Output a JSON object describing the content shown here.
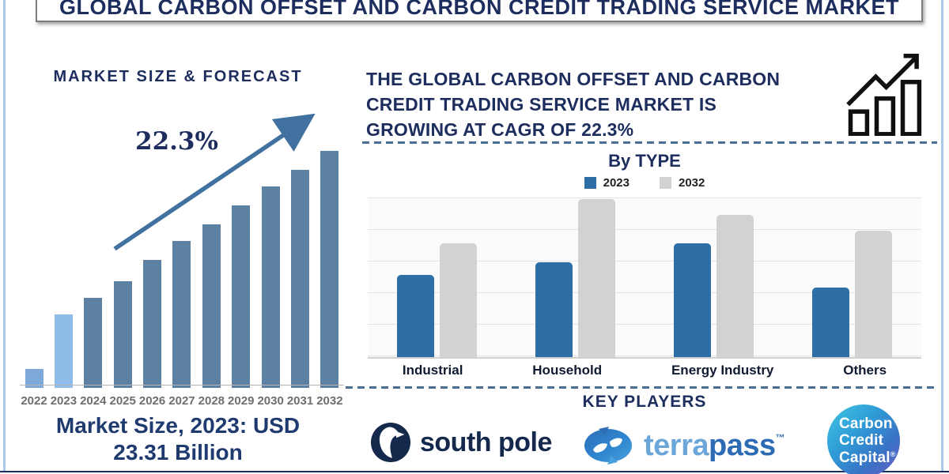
{
  "title": "GLOBAL CARBON OFFSET AND CARBON CREDIT TRADING SERVICE MARKET",
  "left_panel": {
    "heading": "MARKET SIZE & FORECAST",
    "cagr_label": "22.3%",
    "caption_line1": "Market Size, 2023: USD",
    "caption_line2": "23.31 Billion"
  },
  "right_panel": {
    "headline_line1": "THE GLOBAL CARBON OFFSET AND CARBON",
    "headline_line2": "CREDIT TRADING SERVICE MARKET IS",
    "headline_line3": "GROWING AT CAGR OF 22.3%",
    "by_type_title": "By TYPE",
    "key_players_heading": "KEY PLAYERS"
  },
  "key_players": {
    "south_pole_label": "south pole",
    "terrapass_part1": "terra",
    "terrapass_part2": "pass",
    "terrapass_tm": "™",
    "ccc_line1": "Carbon",
    "ccc_line2": "Credit",
    "ccc_line3": "Capital",
    "ccc_reg": "®"
  },
  "colors": {
    "navy": "#1c2d5e",
    "caption_navy": "#1f3a6e",
    "year_label_gray": "#6e6e6e",
    "edge_blue": "#a9c9e9",
    "dashed_line": "#4a6f94",
    "arrow_steel": "#41729f",
    "bar_steel": "#5d81a3",
    "bar_light_2022": "#7fa9d8",
    "bar_light_2023": "#8fbce8",
    "type_2023_blue": "#2d6ea6",
    "type_2032_gray": "#d2d2d2",
    "southpole_navy": "#15294d",
    "terra_light_blue": "#6ba6da",
    "pass_dark_blue": "#2d6cb4"
  },
  "chart_data": [
    {
      "type": "bar",
      "title": "MARKET SIZE & FORECAST",
      "categories": [
        "2022",
        "2023",
        "2024",
        "2025",
        "2026",
        "2027",
        "2028",
        "2029",
        "2030",
        "2031",
        "2032"
      ],
      "values_relative_pct": [
        8,
        31,
        38,
        45,
        54,
        62,
        69,
        77,
        85,
        92,
        100
      ],
      "unit": "relative bar height, % of 2032 bar (no numeric axis shown)",
      "annotation": "22.3%",
      "note": "Market Size, 2023: USD 23.31 Billion",
      "bar_colors": [
        "#7fa9d8",
        "#8fbce8",
        "#5d81a3",
        "#5d81a3",
        "#5d81a3",
        "#5d81a3",
        "#5d81a3",
        "#5d81a3",
        "#5d81a3",
        "#5d81a3",
        "#5d81a3"
      ],
      "grid": false,
      "legend_position": "none"
    },
    {
      "type": "bar",
      "title": "By TYPE",
      "categories": [
        "Industrial",
        "Household",
        "Energy Industry",
        "Others"
      ],
      "series": [
        {
          "name": "2023",
          "color": "#2d6ea6",
          "values_relative_pct": [
            52,
            60,
            72,
            44
          ]
        },
        {
          "name": "2032",
          "color": "#d2d2d2",
          "values_relative_pct": [
            72,
            100,
            90,
            80
          ]
        }
      ],
      "unit": "relative bar height, % of tallest bar (no numeric axis shown)",
      "grid": "horizontal",
      "legend_position": "top"
    }
  ]
}
